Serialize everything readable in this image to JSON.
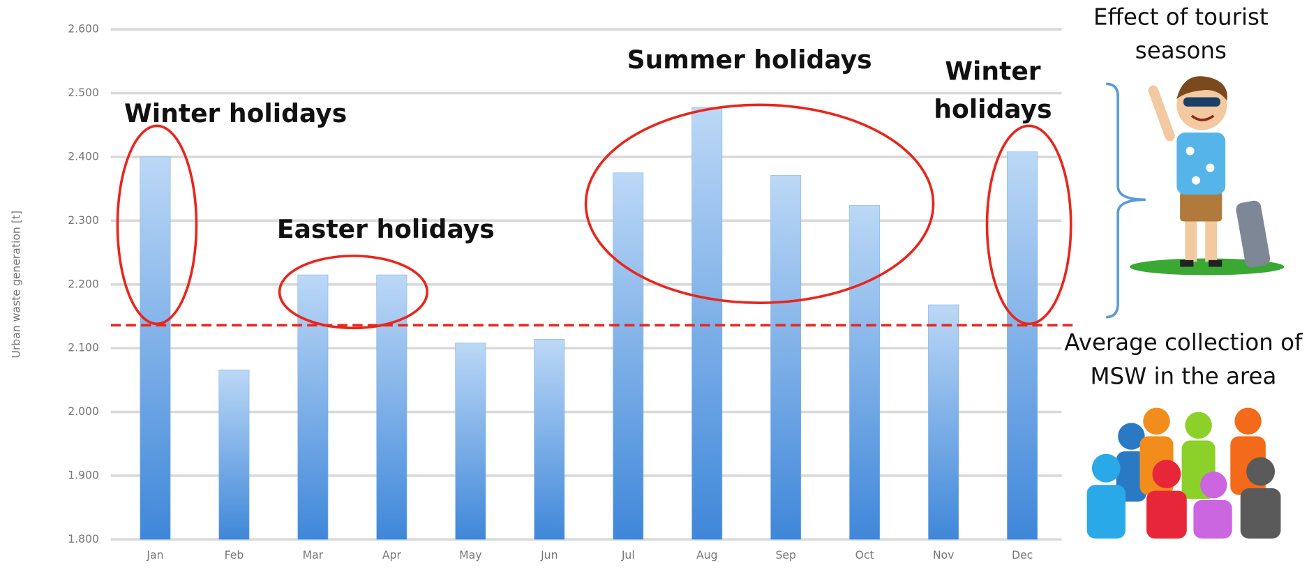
{
  "chart_data": {
    "type": "bar",
    "y_label": "Urban waste generation [t]",
    "categories": [
      "Jan",
      "Feb",
      "Mar",
      "Apr",
      "May",
      "Jun",
      "Jul",
      "Aug",
      "Sep",
      "Oct",
      "Nov",
      "Dec"
    ],
    "values": [
      2400,
      2066,
      2215,
      2215,
      2108,
      2114,
      2375,
      2478,
      2371,
      2324,
      2168,
      2408
    ],
    "color": "#7fb3ea",
    "ylim": [
      1800,
      2600
    ],
    "yticks": [
      {
        "value": 1800,
        "label": "1.800"
      },
      {
        "value": 1900,
        "label": "1.900"
      },
      {
        "value": 2000,
        "label": "2.000"
      },
      {
        "value": 2100,
        "label": "2.100"
      },
      {
        "value": 2200,
        "label": "2.200"
      },
      {
        "value": 2300,
        "label": "2.300"
      },
      {
        "value": 2400,
        "label": "2.400"
      },
      {
        "value": 2500,
        "label": "2.500"
      },
      {
        "value": 2600,
        "label": "2.600"
      }
    ],
    "grid": true,
    "average_line": 2136,
    "average_color": "#e8261c",
    "annotations": [
      {
        "lines": [
          "Winter holidays"
        ]
      },
      {
        "lines": [
          "Easter holidays"
        ]
      },
      {
        "lines": [
          "Summer holidays"
        ]
      },
      {
        "lines": [
          "Winter",
          "holidays"
        ]
      }
    ],
    "side_notes": [
      {
        "lines": [
          "Effect of tourist",
          "seasons"
        ]
      },
      {
        "lines": [
          "Average collection of",
          "MSW in the area"
        ]
      }
    ]
  }
}
